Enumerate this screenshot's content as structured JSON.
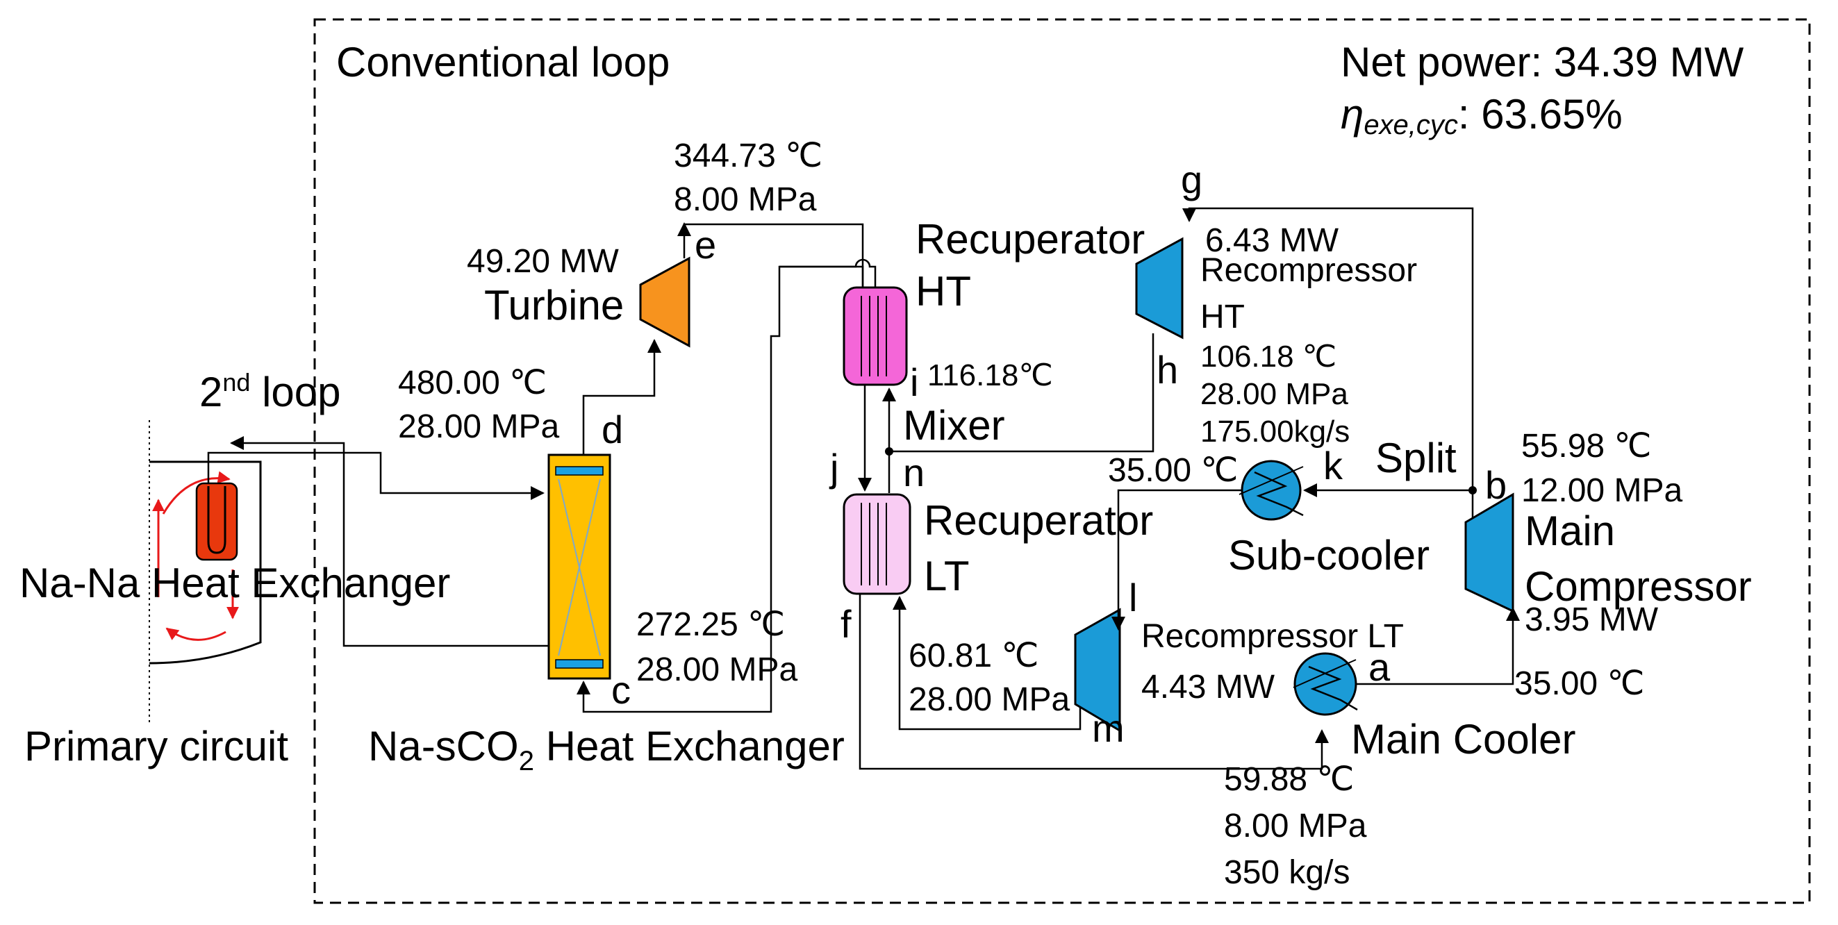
{
  "title": "Conventional loop",
  "summary": {
    "net_power": "Net power: 34.39 MW",
    "eta_symbol": "η",
    "eta_subscript": "exe,cyc",
    "eta_value": ":  63.65%"
  },
  "primary": {
    "label": "Primary circuit",
    "hx_label": "Na-Na Heat Exchanger",
    "second_loop": "2",
    "second_loop_sup": "nd",
    "second_loop_tail": " loop"
  },
  "components": {
    "turbine": {
      "label": "Turbine",
      "power": "49.20 MW"
    },
    "na_sco2_hx": {
      "label_pre": "Na-sCO",
      "label_sub": "2",
      "label_post": " Heat Exchanger"
    },
    "recuperator_ht": {
      "line1": "Recuperator",
      "line2": "HT"
    },
    "recuperator_lt": {
      "line1": "Recuperator",
      "line2": "LT"
    },
    "recompressor_ht": {
      "line1": "Recompressor",
      "line2": "HT",
      "power": "6.43 MW"
    },
    "recompressor_lt": {
      "label": "Recompressor LT",
      "power": "4.43 MW"
    },
    "main_compressor": {
      "line1": "Main",
      "line2": "Compressor",
      "power": "3.95 MW"
    },
    "sub_cooler": {
      "label": "Sub-cooler"
    },
    "main_cooler": {
      "label": "Main Cooler"
    },
    "mixer": {
      "label": "Mixer"
    },
    "split": {
      "label": "Split"
    }
  },
  "points": {
    "a": "a",
    "b": "b",
    "c": "c",
    "d": "d",
    "e": "e",
    "f": "f",
    "g": "g",
    "h": "h",
    "i": "i",
    "j": "j",
    "k": "k",
    "l": "l",
    "m": "m",
    "n": "n"
  },
  "states": {
    "e": {
      "temp": "344.73 ℃",
      "pressure": "8.00 MPa"
    },
    "d": {
      "temp": "480.00 ℃",
      "pressure": "28.00 MPa"
    },
    "c": {
      "temp": "272.25 ℃",
      "pressure": "28.00 MPa"
    },
    "i": {
      "temp": "116.18℃"
    },
    "h": {
      "temp": "106.18 ℃",
      "pressure": "28.00 MPa",
      "flow": "175.00kg/s"
    },
    "k": {
      "temp": "35.00 ℃"
    },
    "b": {
      "temp": "55.98 ℃",
      "pressure": "12.00 MPa"
    },
    "m": {
      "temp": "60.81 ℃",
      "pressure": "28.00 MPa"
    },
    "a": {
      "temp": "35.00 ℃"
    },
    "f": {
      "temp": "59.88 ℃",
      "pressure": "8.00 MPa",
      "flow": "350 kg/s"
    }
  },
  "colors": {
    "turbine": "#F7931E",
    "na_sco2_hx": "#FFC000",
    "hx_bar": "#1BA1E2",
    "recuperator_ht": "#F466D8",
    "recuperator_lt": "#F9CCF3",
    "compressor": "#1B9BD7",
    "cooler": "#1B9BD7",
    "na_na_hx": "#E8380D",
    "arrow_red": "#E8191A"
  }
}
